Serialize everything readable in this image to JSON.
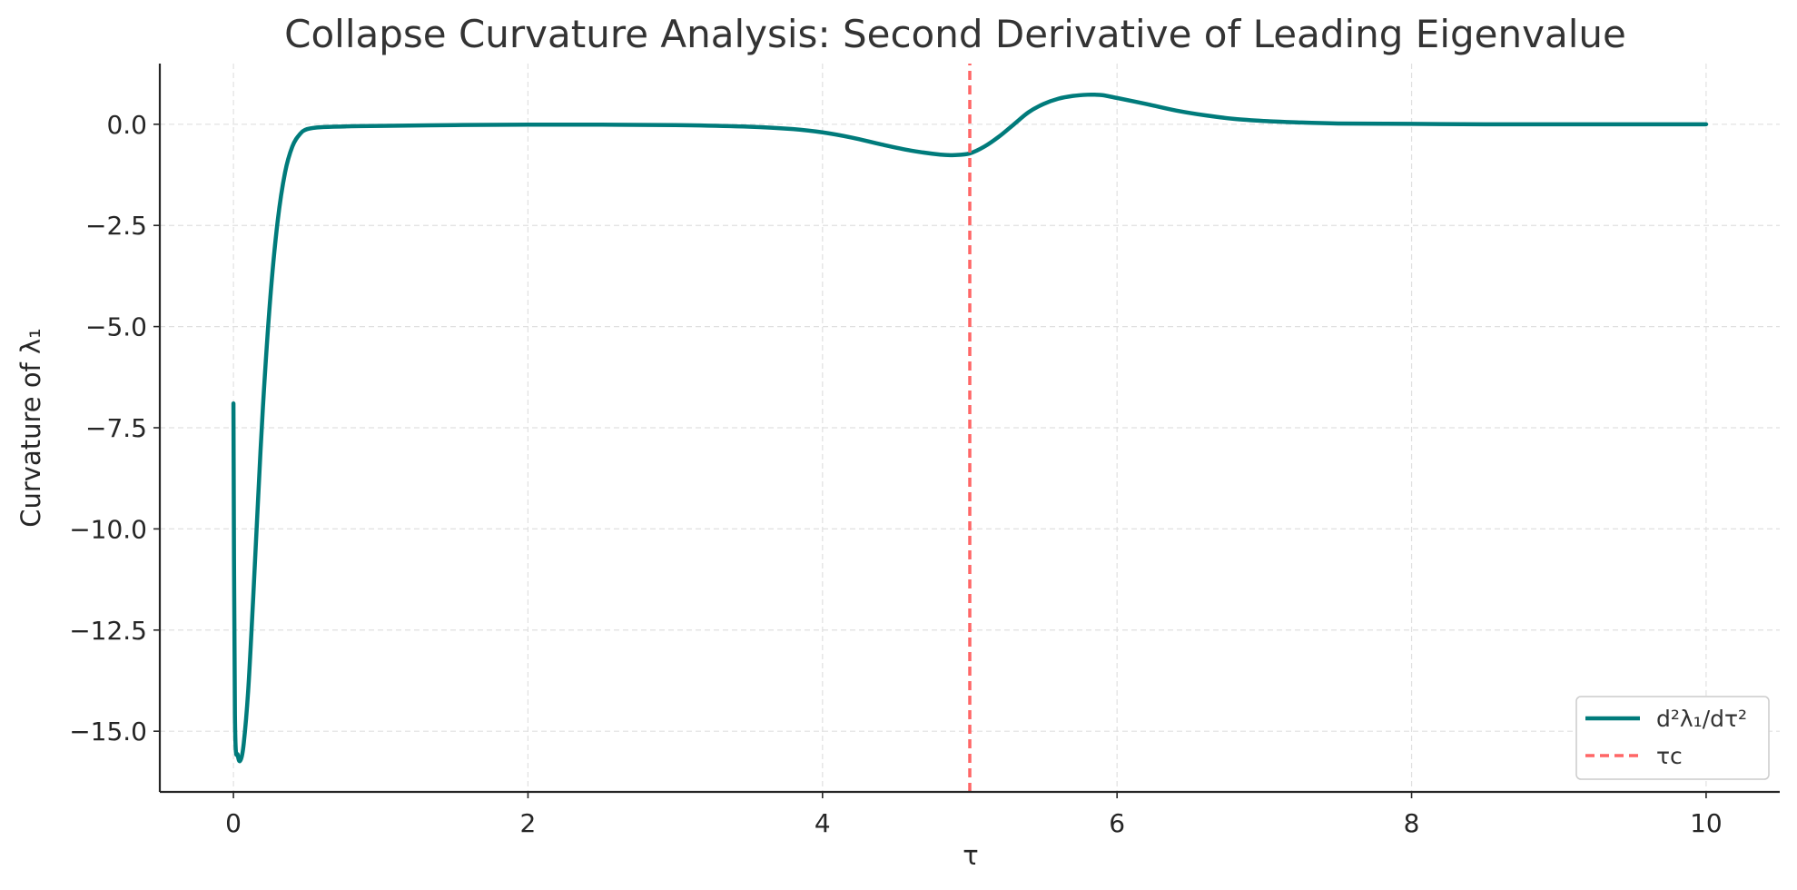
{
  "chart_data": {
    "type": "line",
    "title": "Collapse Curvature Analysis: Second Derivative of Leading Eigenvalue",
    "xlabel": "τ",
    "ylabel": "Curvature of λ₁",
    "xlim": [
      -0.5,
      10.5
    ],
    "ylim": [
      -16.5,
      1.5
    ],
    "xticks": [
      0,
      2,
      4,
      6,
      8,
      10
    ],
    "xtick_labels": [
      "0",
      "2",
      "4",
      "6",
      "8",
      "10"
    ],
    "yticks": [
      0,
      -2.5,
      -5,
      -7.5,
      -10,
      -12.5,
      -15
    ],
    "ytick_labels": [
      "0.0",
      "−2.5",
      "−5.0",
      "−7.5",
      "−10.0",
      "−12.5",
      "−15.0"
    ],
    "grid": true,
    "legend_position": "bottom-right",
    "series": [
      {
        "name": "d²λ₁/dτ²",
        "color": "#007b7b",
        "style": "solid",
        "x": [
          0,
          0.01,
          0.03,
          0.05,
          0.07,
          0.1,
          0.13,
          0.16,
          0.2,
          0.25,
          0.3,
          0.35,
          0.4,
          0.45,
          0.5,
          0.6,
          0.8,
          1.0,
          1.5,
          2.0,
          2.5,
          3.0,
          3.5,
          3.8,
          4.0,
          4.2,
          4.4,
          4.6,
          4.8,
          4.9,
          5.0,
          5.1,
          5.2,
          5.3,
          5.4,
          5.5,
          5.6,
          5.7,
          5.8,
          5.85,
          5.9,
          6.0,
          6.2,
          6.4,
          6.6,
          6.8,
          7.0,
          7.2,
          7.5,
          8.0,
          8.5,
          9.0,
          9.5,
          10.0
        ],
        "y": [
          -6.9,
          -14.6,
          -15.6,
          -15.7,
          -15.3,
          -14.0,
          -12.0,
          -9.8,
          -7.0,
          -4.3,
          -2.4,
          -1.2,
          -0.55,
          -0.25,
          -0.12,
          -0.07,
          -0.05,
          -0.04,
          -0.02,
          -0.01,
          -0.01,
          -0.02,
          -0.06,
          -0.12,
          -0.2,
          -0.33,
          -0.5,
          -0.65,
          -0.75,
          -0.76,
          -0.72,
          -0.55,
          -0.3,
          0.0,
          0.3,
          0.5,
          0.63,
          0.7,
          0.73,
          0.73,
          0.72,
          0.65,
          0.5,
          0.34,
          0.22,
          0.13,
          0.08,
          0.05,
          0.02,
          0.01,
          0.0,
          0.0,
          0.0,
          0.0
        ]
      },
      {
        "name": "τc",
        "color": "#ff6666",
        "style": "dashed",
        "x": [
          5.0,
          5.0
        ],
        "y": [
          -16.5,
          1.5
        ]
      }
    ]
  }
}
